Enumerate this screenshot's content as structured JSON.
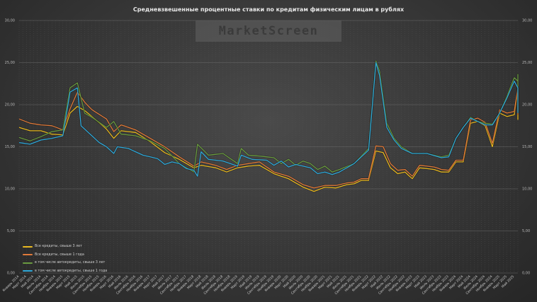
{
  "chart_data": {
    "type": "line",
    "title": "Средневзвешенные процентные ставки по кредитам физическим лицам в рублях",
    "watermark": "MarketScreen",
    "xlabel": "",
    "ylabel": "",
    "ylim": [
      0,
      30
    ],
    "yticks": [
      "0,00",
      "5,00",
      "10,00",
      "15,00",
      "20,00",
      "25,00",
      "30,00"
    ],
    "grid": true,
    "legend_position": "lower-left",
    "x_start": "Январь 2014",
    "x_end": "Май 2025",
    "x_tick_step_months": 2,
    "xtick_labels": [
      "Январь 2014",
      "Март 2014",
      "Май 2014",
      "Июль 2014",
      "Сентябрь 2014",
      "Ноябрь 2014",
      "Январь 2015",
      "Март 2015",
      "Май 2015",
      "Июль 2015",
      "Сентябрь 2015",
      "Ноябрь 2015",
      "Январь 2016",
      "Март 2016",
      "Май 2016",
      "Июль 2016",
      "Сентябрь 2016",
      "Ноябрь 2016",
      "Январь 2017",
      "Март 2017",
      "Май 2017",
      "Июль 2017",
      "Сентябрь 2017",
      "Ноябрь 2017",
      "Январь 2018",
      "Март 2018",
      "Май 2018",
      "Июль 2018",
      "Сентябрь 2018",
      "Ноябрь 2018",
      "Январь 2019",
      "Март 2019",
      "Май 2019",
      "Июль 2019",
      "Сентябрь 2019",
      "Ноябрь 2019",
      "Январь 2020",
      "Март 2020",
      "Май 2020",
      "Июль 2020",
      "Сентябрь 2020",
      "Ноябрь 2020",
      "Январь 2021",
      "Март 2021",
      "Май 2021",
      "Июль 2021",
      "Сентябрь 2021",
      "Ноябрь 2021",
      "Январь 2022",
      "Март 2022",
      "Май 2022",
      "Июль 2022",
      "Сентябрь 2022",
      "Ноябрь 2022",
      "Январь 2023",
      "Март 2023",
      "Май 2023",
      "Июль 2023",
      "Сентябрь 2023",
      "Ноябрь 2023",
      "Январь 2024",
      "Март 2024",
      "Май 2024",
      "Июль 2024",
      "Сентябрь 2024",
      "Ноябрь 2024",
      "Январь 2025",
      "Март 2025",
      "Май 2025"
    ],
    "series": [
      {
        "name": "Все кредиты, свыше 3 лет",
        "color": "#e8b820",
        "anchors": [
          [
            0,
            17.3
          ],
          [
            3,
            16.9
          ],
          [
            6,
            16.9
          ],
          [
            9,
            16.5
          ],
          [
            12,
            16.4
          ],
          [
            14,
            19.0
          ],
          [
            16,
            19.8
          ],
          [
            18,
            19.3
          ],
          [
            20,
            18.6
          ],
          [
            24,
            17.1
          ],
          [
            26,
            16.0
          ],
          [
            28,
            16.9
          ],
          [
            32,
            16.7
          ],
          [
            36,
            15.6
          ],
          [
            40,
            14.3
          ],
          [
            44,
            13.5
          ],
          [
            48,
            12.5
          ],
          [
            50,
            12.8
          ],
          [
            54,
            12.5
          ],
          [
            57,
            12.0
          ],
          [
            60,
            12.5
          ],
          [
            63,
            12.7
          ],
          [
            66,
            12.8
          ],
          [
            70,
            11.8
          ],
          [
            74,
            11.2
          ],
          [
            78,
            10.2
          ],
          [
            81,
            9.7
          ],
          [
            84,
            10.2
          ],
          [
            87,
            10.1
          ],
          [
            90,
            10.5
          ],
          [
            92,
            10.6
          ],
          [
            94,
            11.0
          ],
          [
            96,
            11.0
          ],
          [
            98,
            14.5
          ],
          [
            100,
            14.3
          ],
          [
            102,
            12.5
          ],
          [
            104,
            11.8
          ],
          [
            106,
            12.0
          ],
          [
            108,
            11.2
          ],
          [
            110,
            12.5
          ],
          [
            114,
            12.3
          ],
          [
            116,
            12.0
          ],
          [
            118,
            12.0
          ],
          [
            120,
            13.2
          ],
          [
            122,
            13.2
          ],
          [
            124,
            17.8
          ],
          [
            126,
            18.0
          ],
          [
            128,
            17.5
          ],
          [
            130,
            15.0
          ],
          [
            132,
            19.0
          ],
          [
            134,
            18.6
          ],
          [
            136,
            18.8
          ],
          [
            137,
            21.8
          ],
          [
            138,
            19.2
          ],
          [
            139,
            19.5
          ],
          [
            140,
            18.5
          ],
          [
            141,
            18.2
          ]
        ]
      },
      {
        "name": "Все кредиты, свыше 1 года",
        "color": "#e07a3a",
        "anchors": [
          [
            0,
            18.3
          ],
          [
            3,
            17.8
          ],
          [
            6,
            17.6
          ],
          [
            9,
            17.5
          ],
          [
            12,
            17.0
          ],
          [
            14,
            19.5
          ],
          [
            16,
            21.5
          ],
          [
            18,
            20.3
          ],
          [
            20,
            19.4
          ],
          [
            24,
            18.3
          ],
          [
            26,
            16.8
          ],
          [
            28,
            17.6
          ],
          [
            32,
            17.0
          ],
          [
            36,
            16.0
          ],
          [
            40,
            15.0
          ],
          [
            44,
            13.8
          ],
          [
            48,
            12.7
          ],
          [
            50,
            13.2
          ],
          [
            54,
            12.8
          ],
          [
            57,
            12.3
          ],
          [
            60,
            12.8
          ],
          [
            63,
            13.0
          ],
          [
            66,
            13.2
          ],
          [
            70,
            12.0
          ],
          [
            74,
            11.5
          ],
          [
            78,
            10.5
          ],
          [
            81,
            10.1
          ],
          [
            84,
            10.4
          ],
          [
            87,
            10.4
          ],
          [
            90,
            10.7
          ],
          [
            92,
            10.8
          ],
          [
            94,
            11.2
          ],
          [
            96,
            11.2
          ],
          [
            98,
            15.1
          ],
          [
            100,
            15.0
          ],
          [
            102,
            13.0
          ],
          [
            104,
            12.2
          ],
          [
            106,
            12.3
          ],
          [
            108,
            11.5
          ],
          [
            110,
            12.8
          ],
          [
            114,
            12.6
          ],
          [
            116,
            12.3
          ],
          [
            118,
            12.2
          ],
          [
            120,
            13.4
          ],
          [
            122,
            13.4
          ],
          [
            124,
            18.2
          ],
          [
            126,
            18.4
          ],
          [
            128,
            17.9
          ],
          [
            130,
            15.4
          ],
          [
            132,
            19.4
          ],
          [
            134,
            19.0
          ],
          [
            136,
            19.2
          ],
          [
            137,
            22.0
          ],
          [
            138,
            20.2
          ],
          [
            139,
            20.3
          ],
          [
            140,
            18.8
          ],
          [
            141,
            18.8
          ]
        ]
      },
      {
        "name": "в том числе автокредиты, свыше 3 лет",
        "color": "#6a9a40",
        "anchors": [
          [
            0,
            16.1
          ],
          [
            3,
            15.7
          ],
          [
            6,
            16.2
          ],
          [
            9,
            16.8
          ],
          [
            12,
            17.0
          ],
          [
            14,
            22.0
          ],
          [
            16,
            22.6
          ],
          [
            18,
            19.0
          ],
          [
            20,
            18.5
          ],
          [
            24,
            17.3
          ],
          [
            26,
            18.0
          ],
          [
            28,
            16.5
          ],
          [
            32,
            16.3
          ],
          [
            36,
            15.7
          ],
          [
            40,
            14.8
          ],
          [
            44,
            13.0
          ],
          [
            48,
            12.0
          ],
          [
            49,
            15.3
          ],
          [
            52,
            14.0
          ],
          [
            56,
            14.2
          ],
          [
            60,
            13.0
          ],
          [
            61,
            14.8
          ],
          [
            63,
            14.0
          ],
          [
            66,
            13.9
          ],
          [
            70,
            13.7
          ],
          [
            72,
            13.0
          ],
          [
            74,
            13.5
          ],
          [
            76,
            12.8
          ],
          [
            78,
            13.3
          ],
          [
            80,
            13.0
          ],
          [
            82,
            12.3
          ],
          [
            84,
            12.7
          ],
          [
            86,
            12.0
          ],
          [
            88,
            12.3
          ],
          [
            92,
            13.0
          ],
          [
            96,
            14.8
          ],
          [
            98,
            25.2
          ],
          [
            99,
            24.0
          ],
          [
            101,
            17.8
          ],
          [
            103,
            16.0
          ],
          [
            105,
            15.0
          ],
          [
            108,
            14.2
          ],
          [
            112,
            14.2
          ],
          [
            116,
            13.8
          ],
          [
            118,
            14.0
          ],
          [
            120,
            16.0
          ],
          [
            122,
            17.3
          ],
          [
            124,
            18.5
          ],
          [
            126,
            18.0
          ],
          [
            128,
            17.8
          ],
          [
            130,
            17.7
          ],
          [
            132,
            19.0
          ],
          [
            134,
            21.0
          ],
          [
            136,
            23.2
          ],
          [
            137,
            22.8
          ],
          [
            138,
            23.5
          ],
          [
            139,
            23.6
          ],
          [
            140,
            23.0
          ],
          [
            141,
            20.3
          ]
        ]
      },
      {
        "name": "в том числе автокредиты, свыше 1 года",
        "color": "#30a8d8",
        "anchors": [
          [
            0,
            15.5
          ],
          [
            3,
            15.3
          ],
          [
            6,
            15.8
          ],
          [
            9,
            16.0
          ],
          [
            12,
            16.3
          ],
          [
            14,
            21.5
          ],
          [
            16,
            22.0
          ],
          [
            17,
            17.5
          ],
          [
            20,
            16.3
          ],
          [
            22,
            15.5
          ],
          [
            24,
            15.0
          ],
          [
            26,
            14.2
          ],
          [
            27,
            15.0
          ],
          [
            30,
            14.8
          ],
          [
            34,
            14.0
          ],
          [
            38,
            13.6
          ],
          [
            40,
            12.9
          ],
          [
            42,
            13.2
          ],
          [
            44,
            13.0
          ],
          [
            46,
            12.4
          ],
          [
            48,
            12.2
          ],
          [
            49,
            11.5
          ],
          [
            50,
            14.4
          ],
          [
            52,
            13.5
          ],
          [
            56,
            13.3
          ],
          [
            60,
            12.7
          ],
          [
            61,
            14.0
          ],
          [
            64,
            13.5
          ],
          [
            68,
            13.4
          ],
          [
            70,
            12.8
          ],
          [
            72,
            13.3
          ],
          [
            74,
            12.6
          ],
          [
            76,
            12.9
          ],
          [
            80,
            12.5
          ],
          [
            82,
            11.8
          ],
          [
            84,
            12.0
          ],
          [
            86,
            11.7
          ],
          [
            88,
            12.0
          ],
          [
            92,
            13.0
          ],
          [
            96,
            14.6
          ],
          [
            98,
            25.0
          ],
          [
            99,
            23.5
          ],
          [
            101,
            17.3
          ],
          [
            103,
            15.8
          ],
          [
            105,
            14.8
          ],
          [
            108,
            14.2
          ],
          [
            112,
            14.2
          ],
          [
            116,
            13.7
          ],
          [
            118,
            13.8
          ],
          [
            120,
            16.0
          ],
          [
            122,
            17.3
          ],
          [
            124,
            18.4
          ],
          [
            126,
            18.0
          ],
          [
            128,
            17.6
          ],
          [
            130,
            17.6
          ],
          [
            132,
            19.0
          ],
          [
            134,
            20.8
          ],
          [
            136,
            22.8
          ],
          [
            137,
            22.0
          ],
          [
            139,
            21.6
          ],
          [
            140,
            20.6
          ],
          [
            141,
            19.0
          ]
        ]
      }
    ]
  }
}
